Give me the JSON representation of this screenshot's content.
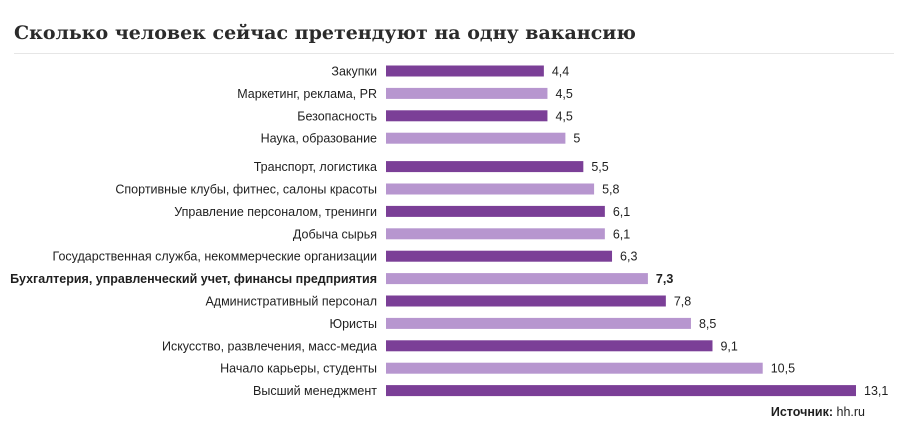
{
  "chart_data": {
    "type": "bar",
    "orientation": "horizontal",
    "title": "Сколько человек сейчас претендуют на одну вакансию",
    "categories": [
      "Закупки",
      "Маркетинг, реклама, PR",
      "Безопасность",
      "Наука, образование",
      "Транспорт, логистика",
      "Спортивные клубы, фитнес, салоны красоты",
      "Управление персоналом, тренинги",
      "Добыча сырья",
      "Государственная служба, некоммерческие организации",
      "Бухгалтерия, управленческий учет, финансы предприятия",
      "Административный персонал",
      "Юристы",
      "Искусство, развлечения, масс-медиа",
      "Начало карьеры, студенты",
      "Высший менеджмент"
    ],
    "values": [
      4.4,
      4.5,
      4.5,
      5,
      5.5,
      5.8,
      6.1,
      6.1,
      6.3,
      7.3,
      7.8,
      8.5,
      9.1,
      10.5,
      13.1
    ],
    "value_labels": [
      "4,4",
      "4,5",
      "4,5",
      "5",
      "5,5",
      "5,8",
      "6,1",
      "6,1",
      "6,3",
      "7,3",
      "7,8",
      "8,5",
      "9,1",
      "10,5",
      "13,1"
    ],
    "highlight_index": 9,
    "xlim": [
      0,
      13.1
    ],
    "grid": false,
    "legend": "none",
    "colors": {
      "dark": "#7b3f97",
      "light": "#b796cf"
    },
    "bar_color_pattern": [
      "dark",
      "light",
      "dark",
      "light",
      "dark",
      "light",
      "dark",
      "light",
      "dark",
      "light",
      "dark",
      "light",
      "dark",
      "light",
      "dark"
    ]
  },
  "source": {
    "label": "Источник:",
    "value": "hh.ru"
  }
}
